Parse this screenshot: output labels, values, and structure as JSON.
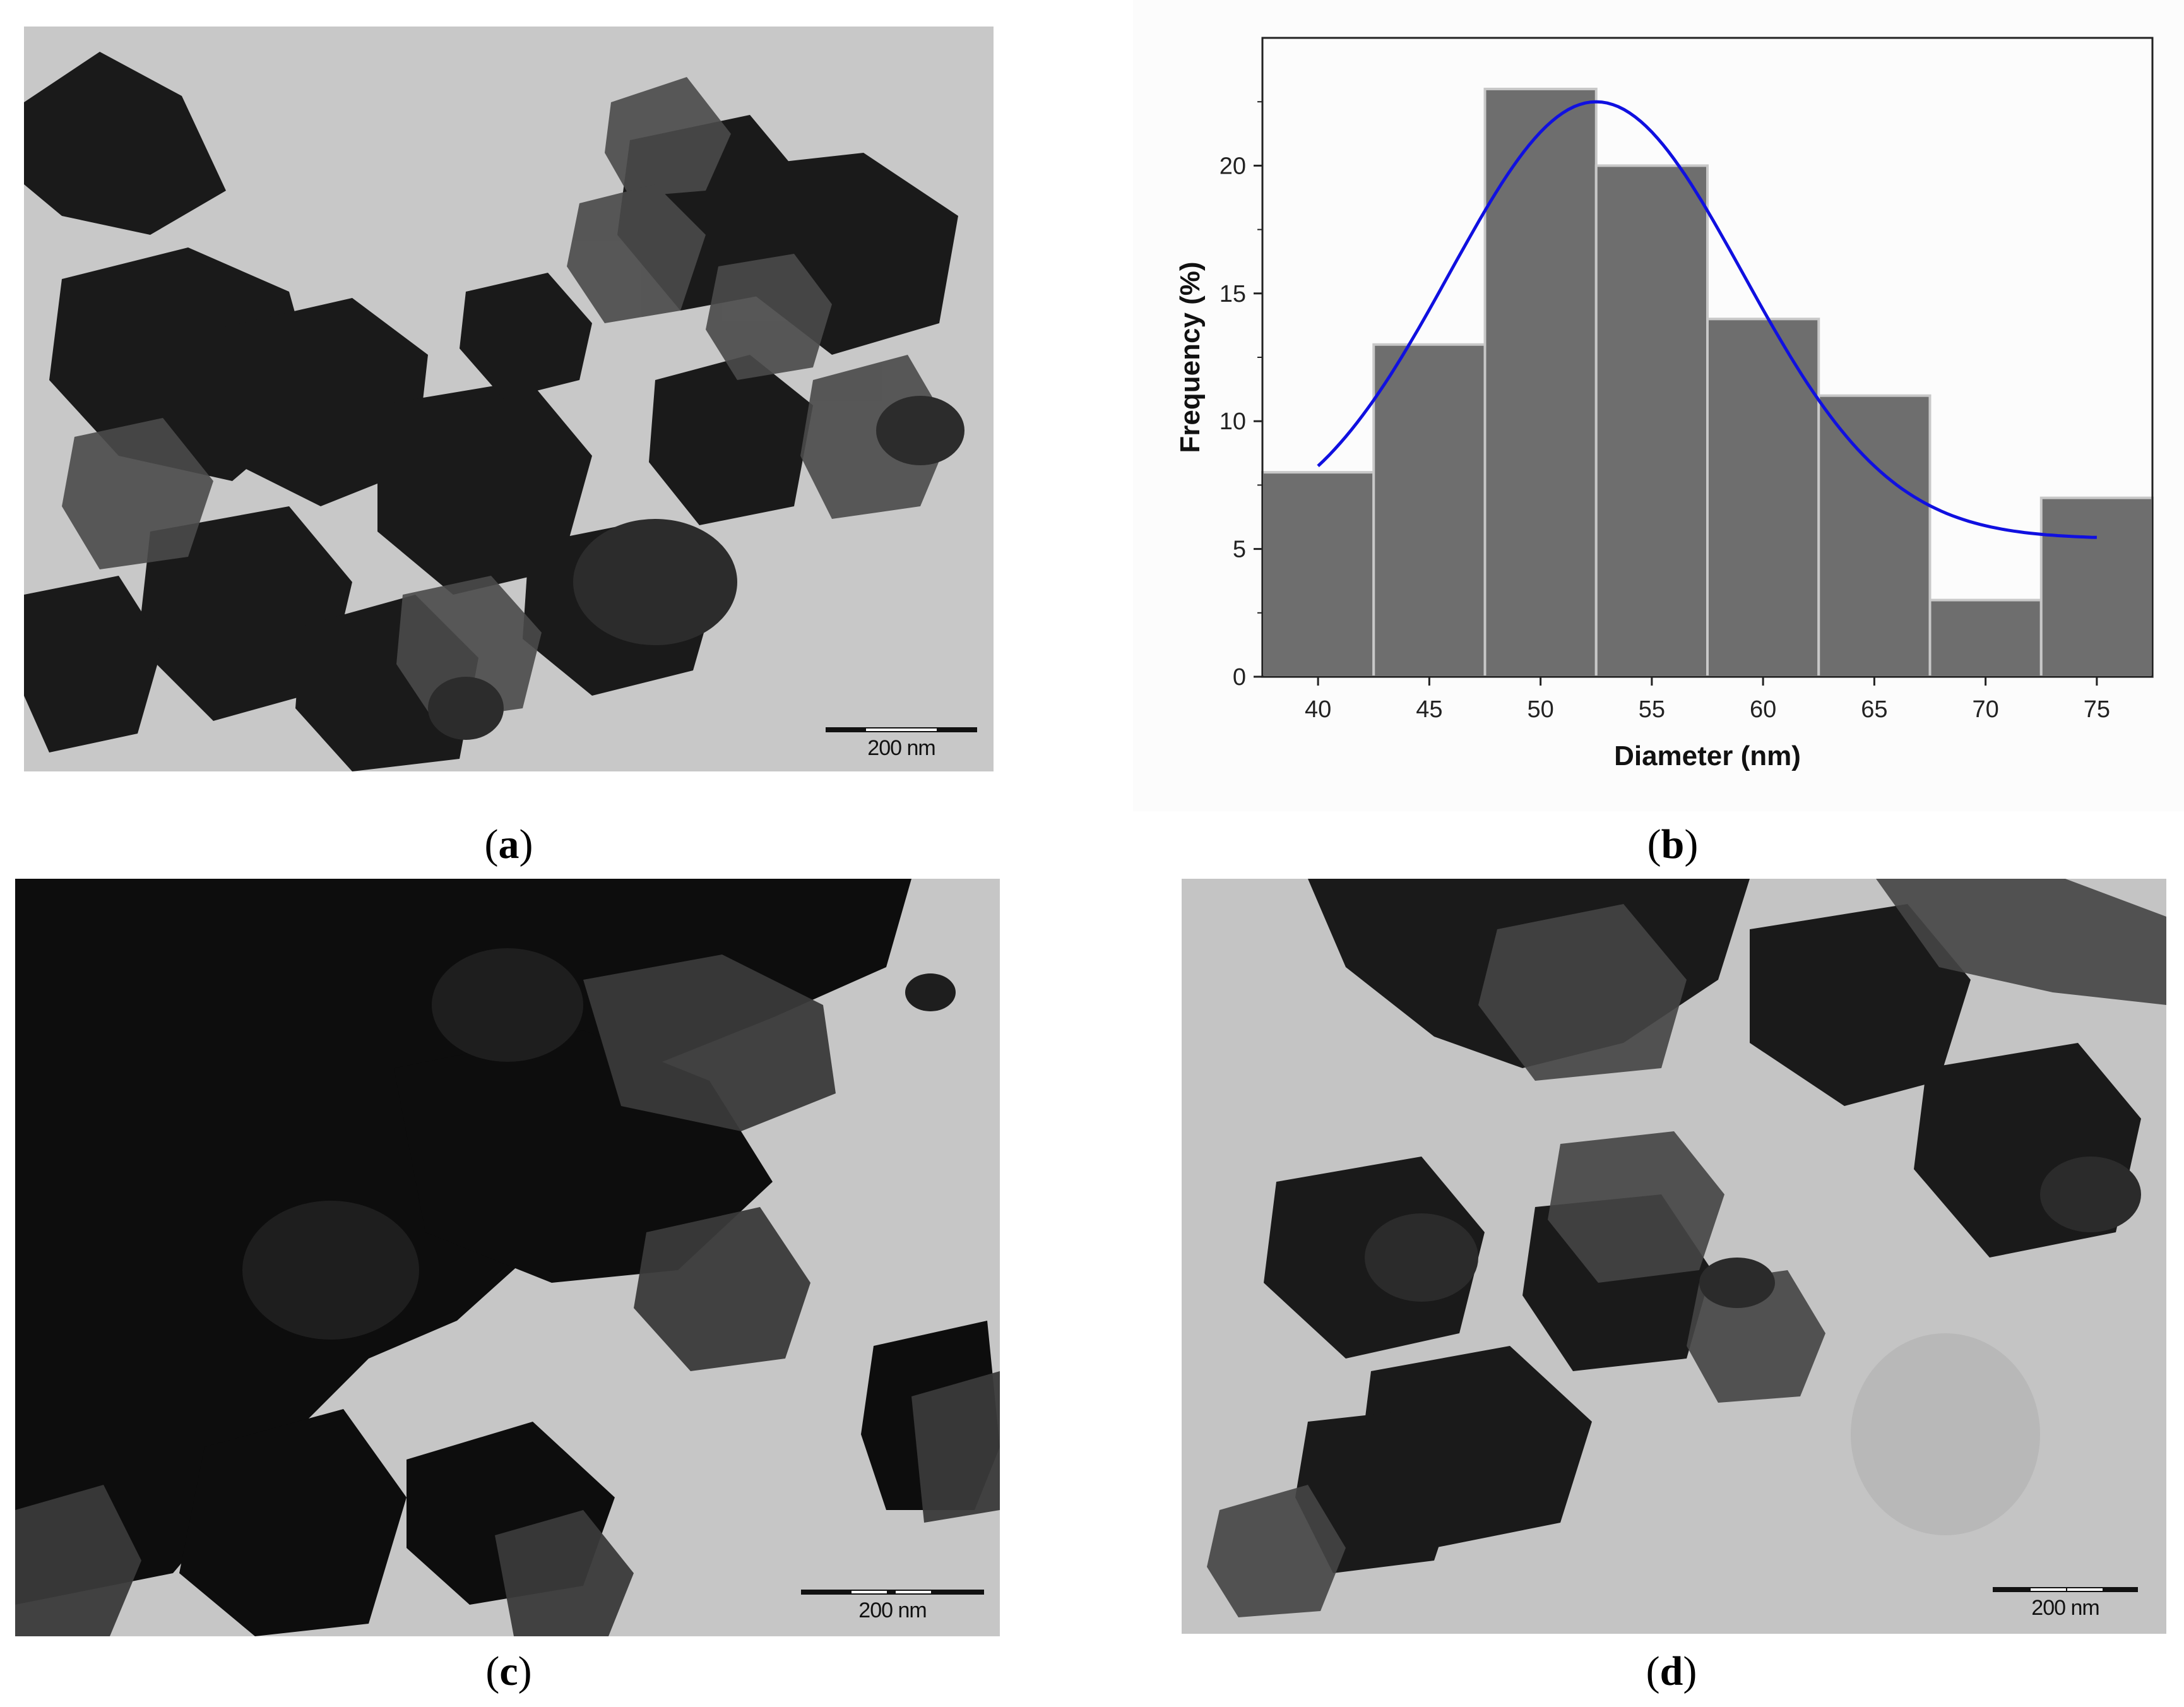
{
  "panels": {
    "a": {
      "caption_letter": "a",
      "scale_label": "200 nm"
    },
    "b": {
      "caption_letter": "b"
    },
    "c": {
      "caption_letter": "c",
      "scale_label": "200 nm"
    },
    "d": {
      "caption_letter": "d",
      "scale_label": "200 nm"
    }
  },
  "chart_data": {
    "type": "bar",
    "subtype": "histogram-with-gaussian-fit",
    "title": "",
    "xlabel": "Diameter (nm)",
    "ylabel": "Frequency (%)",
    "categories": [
      40,
      45,
      50,
      55,
      60,
      65,
      70,
      75
    ],
    "values": [
      8,
      13,
      23,
      20,
      14,
      11,
      3,
      7
    ],
    "bin_width": 5,
    "xlim": [
      37.5,
      77.5
    ],
    "ylim": [
      0,
      25
    ],
    "xticks": [
      "40",
      "45",
      "50",
      "55",
      "60",
      "65",
      "70",
      "75"
    ],
    "yticks": [
      "0",
      "5",
      "10",
      "15",
      "20"
    ],
    "fit_curve": {
      "x_range": [
        40,
        75
      ],
      "baseline": 5.4,
      "amplitude": 17.1,
      "center": 52.5,
      "sigma": 6.6
    },
    "grid": false,
    "bar_color": "#6e6e6e",
    "bar_edge_color": "#c8c8c8",
    "fit_color": "#1010e0"
  }
}
